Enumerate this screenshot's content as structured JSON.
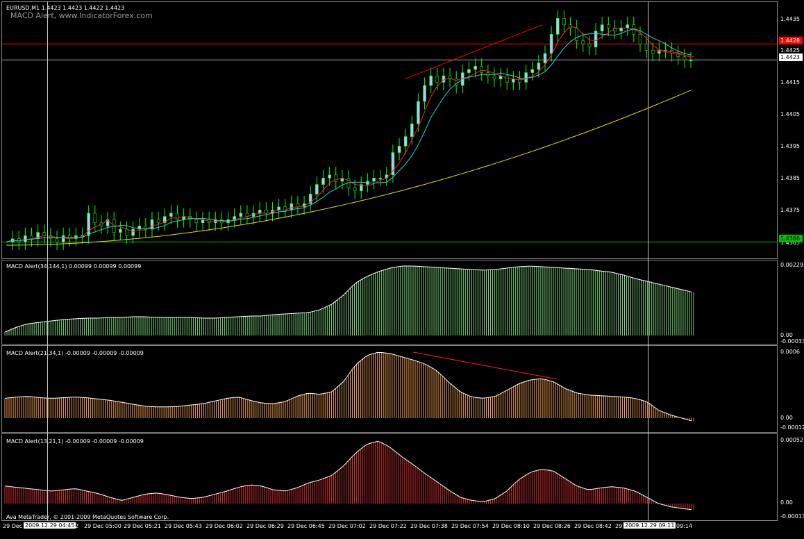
{
  "main": {
    "symbol_info": "EURUSD,M1  1.4423 1.4423 1.4422 1.4423",
    "indicator_watermark": "MACD Alert, www.IndicatorForex.com",
    "price_labels": [
      "1.4435",
      "1.4425",
      "1.4415",
      "1.4405",
      "1.4395",
      "1.4385",
      "1.4375",
      "1.4365"
    ],
    "red_line_price": "1.4428",
    "current_price": "1.4423",
    "green_line_price": "1.4366",
    "colors": {
      "red_line": "#ff0000",
      "green_line": "#00c000",
      "grey_line": "#9aa8b8",
      "candle_up": "#00ff00",
      "candle_body": "#aac8ff",
      "ma_red": "#ff2020",
      "ma_cyan": "#20d8d8",
      "ma_yellow": "#e0e000"
    }
  },
  "panes": [
    {
      "title": "MACD Alert(34,144,1) 0.00099 0.00099 0.00099",
      "top_label": "0.00229",
      "zero_label": "0.00",
      "bottom_label": "-0.00033",
      "bar_color": "#7cd47c"
    },
    {
      "title": "MACD Alert(21,34,1) -0.00009 -0.00009 -0.00009",
      "top_label": "0.0006",
      "zero_label": "0.00",
      "bottom_label": "-0.00012",
      "bar_color": "#f0a050"
    },
    {
      "title": "MACD Alert(13,21,1) -0.00009 -0.00009 -0.00009",
      "top_label": "0.00052",
      "zero_label": "0.00",
      "bottom_label": "-0.00013",
      "bar_color": "#d83030"
    }
  ],
  "copyright": "Ava MetaTrader, © 2001-2009 MetaQuotes Software Corp.",
  "time_axis": {
    "first": "29 Dec",
    "cursor_left": "2009.12.29 04:45",
    "after_cursor_left": "2",
    "labels": [
      "29 Dec 05:00",
      "29 Dec 05:21",
      "29 Dec 05:43",
      "29 Dec 06:02",
      "29 Dec 06:29",
      "29 Dec 06:45",
      "29 Dec 07:02",
      "29 Dec 07:22",
      "29 Dec 07:38",
      "29 Dec 07:54",
      "29 Dec 08:10",
      "29 Dec 08:26",
      "29 Dec 08:42",
      "29"
    ],
    "cursor_right": "2009.12.29 09:11",
    "last": "09:14"
  },
  "series": {
    "price_close": [
      1.4366,
      1.4367,
      1.4366,
      1.4368,
      1.4367,
      1.4369,
      1.4368,
      1.4367,
      1.4366,
      1.4368,
      1.4367,
      1.4368,
      1.4368,
      1.4375,
      1.4372,
      1.4371,
      1.4373,
      1.4369,
      1.437,
      1.4368,
      1.437,
      1.4371,
      1.437,
      1.4373,
      1.4372,
      1.4374,
      1.4375,
      1.4373,
      1.4374,
      1.4373,
      1.4372,
      1.4373,
      1.4372,
      1.4373,
      1.4372,
      1.4373,
      1.4374,
      1.4375,
      1.4374,
      1.4375,
      1.4376,
      1.4375,
      1.4376,
      1.4377,
      1.4376,
      1.4378,
      1.4377,
      1.4378,
      1.4381,
      1.4384,
      1.4386,
      1.4387,
      1.4385,
      1.4386,
      1.4383,
      1.4382,
      1.4384,
      1.4385,
      1.4386,
      1.4386,
      1.4387,
      1.4394,
      1.4396,
      1.4399,
      1.4403,
      1.441,
      1.4415,
      1.4418,
      1.4416,
      1.4418,
      1.4417,
      1.4415,
      1.4419,
      1.442,
      1.4421,
      1.4419,
      1.4418,
      1.4417,
      1.4418,
      1.4416,
      1.4417,
      1.4416,
      1.4419,
      1.442,
      1.4422,
      1.4425,
      1.4431,
      1.4436,
      1.4434,
      1.4433,
      1.4429,
      1.4428,
      1.4427,
      1.4432,
      1.4434,
      1.4433,
      1.4432,
      1.4433,
      1.4434,
      1.4431,
      1.4428,
      1.4426,
      1.4425,
      1.4426,
      1.4426,
      1.4425,
      1.4424,
      1.4423,
      1.4423
    ],
    "macd1": [
      0.05,
      0.12,
      0.17,
      0.19,
      0.21,
      0.23,
      0.24,
      0.25,
      0.25,
      0.26,
      0.26,
      0.27,
      0.27,
      0.26,
      0.26,
      0.26,
      0.26,
      0.25,
      0.25,
      0.26,
      0.27,
      0.28,
      0.28,
      0.3,
      0.31,
      0.32,
      0.33,
      0.37,
      0.45,
      0.58,
      0.75,
      0.85,
      0.92,
      0.97,
      1.0,
      1.0,
      0.99,
      0.98,
      0.97,
      0.96,
      0.95,
      0.94,
      0.95,
      0.97,
      0.99,
      1.0,
      0.99,
      0.98,
      0.97,
      0.96,
      0.95,
      0.93,
      0.91,
      0.87,
      0.82,
      0.78,
      0.74,
      0.7,
      0.66,
      0.62
    ],
    "macd2": [
      0.3,
      0.32,
      0.33,
      0.31,
      0.3,
      0.31,
      0.32,
      0.31,
      0.29,
      0.27,
      0.24,
      0.21,
      0.18,
      0.17,
      0.17,
      0.18,
      0.2,
      0.22,
      0.26,
      0.3,
      0.32,
      0.27,
      0.23,
      0.22,
      0.25,
      0.33,
      0.38,
      0.36,
      0.4,
      0.55,
      0.8,
      0.95,
      1.0,
      0.98,
      0.93,
      0.88,
      0.82,
      0.72,
      0.55,
      0.4,
      0.32,
      0.3,
      0.33,
      0.42,
      0.52,
      0.58,
      0.6,
      0.55,
      0.45,
      0.38,
      0.35,
      0.34,
      0.33,
      0.32,
      0.3,
      0.25,
      0.12,
      0.05,
      0.0,
      -0.05
    ],
    "macd3": [
      0.28,
      0.26,
      0.24,
      0.22,
      0.2,
      0.22,
      0.24,
      0.2,
      0.16,
      0.1,
      0.05,
      0.1,
      0.15,
      0.17,
      0.14,
      0.1,
      0.08,
      0.1,
      0.15,
      0.2,
      0.26,
      0.3,
      0.28,
      0.22,
      0.2,
      0.25,
      0.33,
      0.38,
      0.45,
      0.6,
      0.8,
      0.95,
      1.0,
      0.9,
      0.75,
      0.62,
      0.48,
      0.35,
      0.22,
      0.1,
      0.05,
      0.03,
      0.08,
      0.2,
      0.38,
      0.5,
      0.55,
      0.52,
      0.4,
      0.28,
      0.22,
      0.25,
      0.27,
      0.25,
      0.2,
      0.1,
      0.0,
      -0.05,
      -0.08,
      -0.1
    ]
  }
}
